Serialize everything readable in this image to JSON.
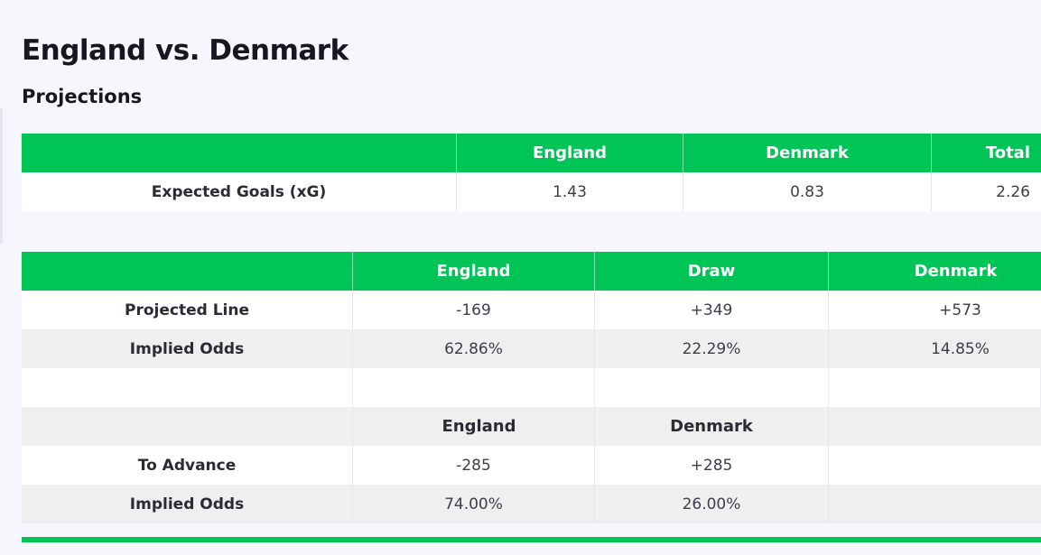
{
  "page": {
    "title": "England vs. Denmark",
    "subtitle": "Projections"
  },
  "xg_table": {
    "header": [
      "",
      "England",
      "Denmark",
      "Total"
    ],
    "row_label": "Expected Goals (xG)",
    "values": [
      "1.43",
      "0.83",
      "2.26"
    ]
  },
  "odds_table": {
    "header": [
      "",
      "England",
      "Draw",
      "Denmark"
    ],
    "projected_line": {
      "label": "Projected Line",
      "values": [
        "-169",
        "+349",
        "+573"
      ]
    },
    "implied_odds": {
      "label": "Implied Odds",
      "values": [
        "62.86%",
        "22.29%",
        "14.85%"
      ]
    },
    "advance_header": [
      "",
      "England",
      "Denmark",
      ""
    ],
    "to_advance": {
      "label": "To Advance",
      "values": [
        "-285",
        "+285",
        ""
      ]
    },
    "advance_implied_odds": {
      "label": "Implied Odds",
      "values": [
        "74.00%",
        "26.00%",
        ""
      ]
    }
  },
  "colors": {
    "accent_green": "#00c456",
    "background": "#f5f7fc",
    "row_gray": "#efefef"
  }
}
